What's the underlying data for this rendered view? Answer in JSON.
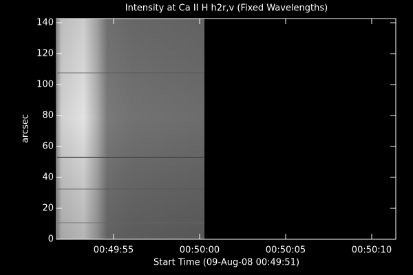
{
  "chart_data": {
    "type": "image",
    "title": "Intensity at Ca II H h2r,v (Fixed Wavelengths)",
    "x_label": "Start Time (09-Aug-08 00:49:51)",
    "y_label": "arcsec",
    "xlim": [
      0.68,
      20.4
    ],
    "xticks": [
      {
        "value": 4,
        "label": "00:49:55"
      },
      {
        "value": 9,
        "label": "00:50:00"
      },
      {
        "value": 14,
        "label": "00:50:05"
      },
      {
        "value": 19,
        "label": "00:50:10"
      }
    ],
    "ylim": [
      0,
      142.7
    ],
    "yticks": [
      0,
      20,
      40,
      60,
      80,
      100,
      120,
      140
    ]
  }
}
